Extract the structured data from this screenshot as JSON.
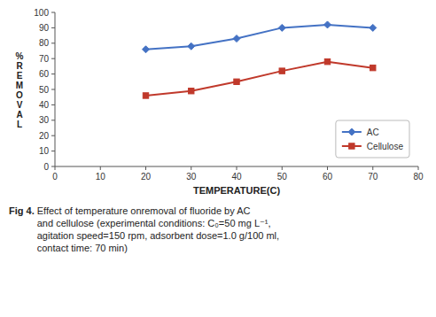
{
  "chart_data": {
    "type": "line",
    "x_label": "TEMPERATURE(C)",
    "y_label": "%\nR\nE\nM\nO\nV\nA\nL",
    "x": [
      20,
      30,
      40,
      50,
      60,
      70
    ],
    "series": [
      {
        "name": "AC",
        "color": "#4472C4",
        "marker": "diamond",
        "values": [
          76,
          78,
          83,
          90,
          92,
          90
        ]
      },
      {
        "name": "Cellulose",
        "color": "#C0392B",
        "marker": "square",
        "values": [
          46,
          49,
          55,
          62,
          68,
          64
        ]
      }
    ],
    "xlim": [
      0,
      80
    ],
    "ylim": [
      0,
      100
    ],
    "xticks": [
      0,
      10,
      20,
      30,
      40,
      50,
      60,
      70,
      80
    ],
    "yticks": [
      0,
      10,
      20,
      30,
      40,
      50,
      60,
      70,
      80,
      90,
      100
    ],
    "grid": false,
    "legend": "lower right",
    "annotations": [
      "Fig 4.",
      " Effect of temperature onremoval of fluoride by AC\nand cellulose (experimental conditions: C₀=50 mg L⁻¹,\nagitation speed=150 rpm, adsorbent dose=1.0 g/100 ml,\ncontact time: 70 min)"
    ]
  }
}
